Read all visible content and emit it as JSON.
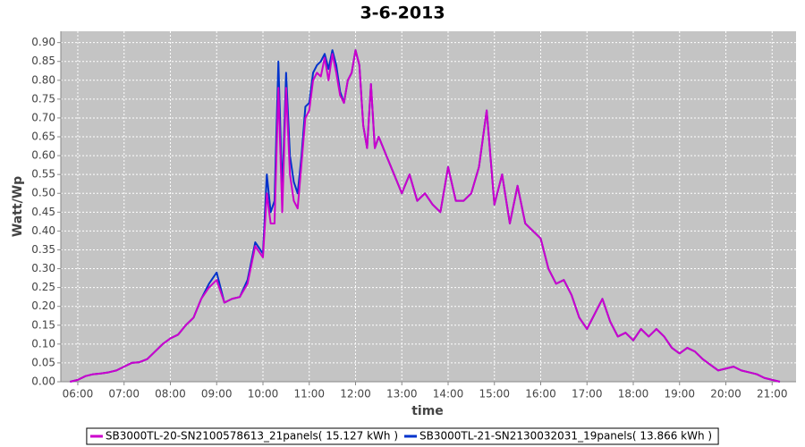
{
  "chart_data": {
    "type": "line",
    "title": "3-6-2013",
    "x_label": "time",
    "y_label": "Watt/Wp",
    "x": [
      "05:50",
      "06:00",
      "06:10",
      "06:20",
      "06:30",
      "06:40",
      "06:50",
      "07:00",
      "07:10",
      "07:20",
      "07:30",
      "07:40",
      "07:50",
      "08:00",
      "08:10",
      "08:20",
      "08:30",
      "08:40",
      "08:50",
      "09:00",
      "09:10",
      "09:20",
      "09:30",
      "09:40",
      "09:50",
      "10:00",
      "10:05",
      "10:10",
      "10:15",
      "10:20",
      "10:25",
      "10:30",
      "10:35",
      "10:40",
      "10:45",
      "10:50",
      "10:55",
      "11:00",
      "11:05",
      "11:10",
      "11:15",
      "11:20",
      "11:25",
      "11:30",
      "11:35",
      "11:40",
      "11:45",
      "11:50",
      "11:55",
      "12:00",
      "12:05",
      "12:10",
      "12:15",
      "12:20",
      "12:25",
      "12:30",
      "12:40",
      "12:50",
      "13:00",
      "13:10",
      "13:20",
      "13:30",
      "13:40",
      "13:50",
      "14:00",
      "14:10",
      "14:20",
      "14:30",
      "14:40",
      "14:50",
      "15:00",
      "15:10",
      "15:20",
      "15:30",
      "15:40",
      "15:50",
      "16:00",
      "16:10",
      "16:20",
      "16:30",
      "16:40",
      "16:50",
      "17:00",
      "17:10",
      "17:20",
      "17:30",
      "17:40",
      "17:50",
      "18:00",
      "18:10",
      "18:20",
      "18:30",
      "18:40",
      "18:50",
      "19:00",
      "19:10",
      "19:20",
      "19:30",
      "19:40",
      "19:50",
      "20:00",
      "20:10",
      "20:20",
      "20:30",
      "20:40",
      "20:50",
      "21:00",
      "21:10"
    ],
    "series": [
      {
        "name": "SB3000TL-20-SN2100578613_21panels( 15.127 kWh )",
        "color": "#cc00cc",
        "values": [
          0,
          0.005,
          0.015,
          0.02,
          0.022,
          0.025,
          0.03,
          0.04,
          0.05,
          0.052,
          0.06,
          0.08,
          0.1,
          0.115,
          0.125,
          0.15,
          0.17,
          0.22,
          0.25,
          0.27,
          0.21,
          0.22,
          0.225,
          0.26,
          0.36,
          0.33,
          0.5,
          0.42,
          0.42,
          0.78,
          0.45,
          0.78,
          0.55,
          0.48,
          0.46,
          0.58,
          0.7,
          0.72,
          0.8,
          0.82,
          0.81,
          0.86,
          0.8,
          0.87,
          0.82,
          0.76,
          0.74,
          0.8,
          0.82,
          0.88,
          0.84,
          0.68,
          0.62,
          0.79,
          0.62,
          0.65,
          0.6,
          0.55,
          0.5,
          0.55,
          0.48,
          0.5,
          0.47,
          0.45,
          0.57,
          0.48,
          0.48,
          0.5,
          0.57,
          0.72,
          0.47,
          0.55,
          0.42,
          0.52,
          0.42,
          0.4,
          0.38,
          0.3,
          0.26,
          0.27,
          0.23,
          0.17,
          0.14,
          0.18,
          0.22,
          0.16,
          0.12,
          0.13,
          0.11,
          0.14,
          0.12,
          0.14,
          0.12,
          0.09,
          0.075,
          0.09,
          0.08,
          0.06,
          0.045,
          0.03,
          0.035,
          0.04,
          0.03,
          0.025,
          0.02,
          0.01,
          0.005,
          0
        ]
      },
      {
        "name": "SB3000TL-21-SN2130032031_19panels( 13.866 kWh )",
        "color": "#0033cc",
        "values": [
          0,
          0.005,
          0.015,
          0.02,
          0.022,
          0.025,
          0.03,
          0.04,
          0.05,
          0.052,
          0.06,
          0.08,
          0.1,
          0.115,
          0.125,
          0.15,
          0.17,
          0.22,
          0.26,
          0.29,
          0.21,
          0.22,
          0.225,
          0.27,
          0.37,
          0.34,
          0.55,
          0.45,
          0.48,
          0.85,
          0.5,
          0.82,
          0.6,
          0.53,
          0.5,
          0.6,
          0.73,
          0.74,
          0.82,
          0.84,
          0.85,
          0.87,
          0.83,
          0.88,
          0.84,
          0.77,
          0.74,
          0.8,
          0.82,
          0.88,
          0.84,
          0.68,
          0.62,
          0.79,
          0.62,
          0.65,
          0.6,
          0.55,
          0.5,
          0.55,
          0.48,
          0.5,
          0.47,
          0.45,
          0.57,
          0.48,
          0.48,
          0.5,
          0.57,
          0.72,
          0.47,
          0.55,
          0.42,
          0.52,
          0.42,
          0.4,
          0.38,
          0.3,
          0.26,
          0.27,
          0.23,
          0.17,
          0.14,
          0.18,
          0.22,
          0.16,
          0.12,
          0.13,
          0.11,
          0.14,
          0.12,
          0.14,
          0.12,
          0.09,
          0.075,
          0.09,
          0.08,
          0.06,
          0.045,
          0.03,
          0.035,
          0.04,
          0.03,
          0.025,
          0.02,
          0.01,
          0.005,
          0
        ]
      }
    ],
    "xlim": [
      "05:38",
      "21:31"
    ],
    "xticks": [
      "06:00",
      "07:00",
      "08:00",
      "09:00",
      "10:00",
      "11:00",
      "12:00",
      "13:00",
      "14:00",
      "15:00",
      "16:00",
      "17:00",
      "18:00",
      "19:00",
      "20:00",
      "21:00"
    ],
    "ylim": [
      0,
      0.93
    ],
    "yticks": [
      {
        "value": 0,
        "label": "0.00"
      },
      {
        "value": 0.05,
        "label": "0.05"
      },
      {
        "value": 0.1,
        "label": "0.10"
      },
      {
        "value": 0.15,
        "label": "0.15"
      },
      {
        "value": 0.2,
        "label": "0.20"
      },
      {
        "value": 0.25,
        "label": "0.25"
      },
      {
        "value": 0.3,
        "label": "0.30"
      },
      {
        "value": 0.35,
        "label": "0.35"
      },
      {
        "value": 0.4,
        "label": "0.40"
      },
      {
        "value": 0.45,
        "label": "0.45"
      },
      {
        "value": 0.5,
        "label": "0.50"
      },
      {
        "value": 0.55,
        "label": "0.55"
      },
      {
        "value": 0.6,
        "label": "0.60"
      },
      {
        "value": 0.65,
        "label": "0.65"
      },
      {
        "value": 0.7,
        "label": "0.70"
      },
      {
        "value": 0.75,
        "label": "0.75"
      },
      {
        "value": 0.8,
        "label": "0.80"
      },
      {
        "value": 0.85,
        "label": "0.85"
      },
      {
        "value": 0.9,
        "label": "0.90"
      }
    ],
    "grid": true,
    "legend": "bottom"
  }
}
